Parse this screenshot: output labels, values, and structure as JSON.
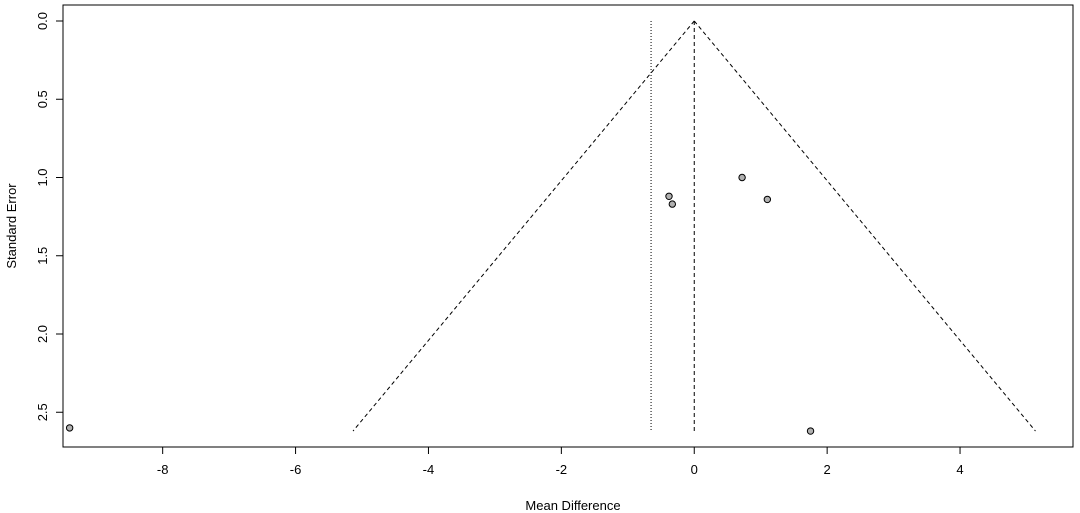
{
  "chart_data": {
    "type": "scatter",
    "title": "",
    "xlabel": "Mean Difference",
    "ylabel": "Standard Error",
    "xlim": [
      -9.5,
      5.7
    ],
    "ylim": [
      0,
      2.7
    ],
    "y_reversed": true,
    "x_ticks": [
      -8,
      -6,
      -4,
      -2,
      0,
      2,
      4
    ],
    "y_ticks": [
      0.0,
      0.5,
      1.0,
      1.5,
      2.0,
      2.5
    ],
    "x_tick_labels": [
      "-8",
      "-6",
      "-4",
      "-2",
      "0",
      "2",
      "4"
    ],
    "y_tick_labels": [
      "0.0",
      "0.5",
      "1.0",
      "1.5",
      "2.0",
      "2.5"
    ],
    "grid": false,
    "points": [
      {
        "x": -9.4,
        "y": 2.6
      },
      {
        "x": -0.38,
        "y": 1.12
      },
      {
        "x": -0.33,
        "y": 1.17
      },
      {
        "x": 0.72,
        "y": 1.0
      },
      {
        "x": 1.1,
        "y": 1.14
      },
      {
        "x": 1.75,
        "y": 2.62
      }
    ],
    "funnel": {
      "center": 0,
      "se_max": 2.62,
      "multiplier": 1.96
    },
    "reference_lines": [
      {
        "x": 0,
        "style": "dashed"
      },
      {
        "x": -0.65,
        "style": "dotted"
      }
    ],
    "colors": {
      "point_fill": "#b0b0b0",
      "line": "#000000"
    }
  }
}
